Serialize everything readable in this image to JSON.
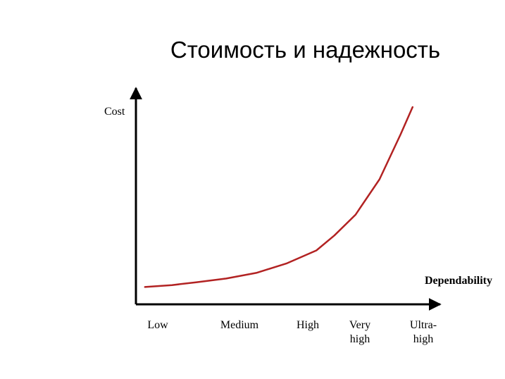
{
  "title": "Стоимость и надежность",
  "chart_data": {
    "type": "line",
    "title": "Стоимость и надежность",
    "ylabel": "Cost",
    "xlabel": "Dependability",
    "categories": [
      {
        "lines": [
          "Low"
        ]
      },
      {
        "lines": [
          "Medium"
        ]
      },
      {
        "lines": [
          "High"
        ]
      },
      {
        "lines": [
          "Very",
          "high"
        ]
      },
      {
        "lines": [
          "Ultra-",
          "high"
        ]
      }
    ],
    "x_range": [
      0,
      5
    ],
    "y_range": [
      0,
      100
    ],
    "series": [
      {
        "color": "#b22222",
        "points": [
          [
            0.15,
            4
          ],
          [
            0.6,
            5
          ],
          [
            1.0,
            6.5
          ],
          [
            1.5,
            8.5
          ],
          [
            2.0,
            11.5
          ],
          [
            2.5,
            16.5
          ],
          [
            3.0,
            23.5
          ],
          [
            3.3,
            31.5
          ],
          [
            3.65,
            42.5
          ],
          [
            4.05,
            61.5
          ],
          [
            4.4,
            85.5
          ],
          [
            4.6,
            100
          ]
        ]
      }
    ],
    "grid": false,
    "legend": "none"
  }
}
